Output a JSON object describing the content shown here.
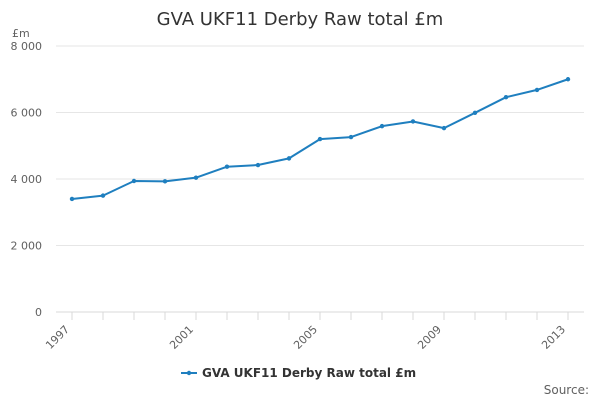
{
  "chart_data": {
    "type": "line",
    "title": "GVA UKF11 Derby Raw total £m",
    "ylabel": "£m",
    "xlabel": "",
    "ylim": [
      0,
      8000
    ],
    "xlim": [
      1997,
      2013
    ],
    "yticks": [
      0,
      2000,
      4000,
      6000,
      8000
    ],
    "ytick_labels": [
      "0",
      "2 000",
      "4 000",
      "6 000",
      "8 000"
    ],
    "xticks": [
      1997,
      2001,
      2005,
      2009,
      2013
    ],
    "xtick_labels": [
      "1997",
      "2001",
      "2005",
      "2009",
      "2013"
    ],
    "grid": true,
    "legend": "bottom",
    "series": [
      {
        "name": "GVA UKF11 Derby Raw total £m",
        "color": "#1f7fbf",
        "x": [
          1997,
          1998,
          1999,
          2000,
          2001,
          2002,
          2003,
          2004,
          2005,
          2006,
          2007,
          2008,
          2009,
          2010,
          2011,
          2012,
          2013
        ],
        "y": [
          3400,
          3500,
          3940,
          3930,
          4040,
          4370,
          4420,
          4620,
          5200,
          5260,
          5590,
          5730,
          5530,
          5990,
          6460,
          6680,
          7000
        ]
      }
    ]
  },
  "legend_label": "GVA UKF11 Derby Raw total £m",
  "source_label": "Source:"
}
